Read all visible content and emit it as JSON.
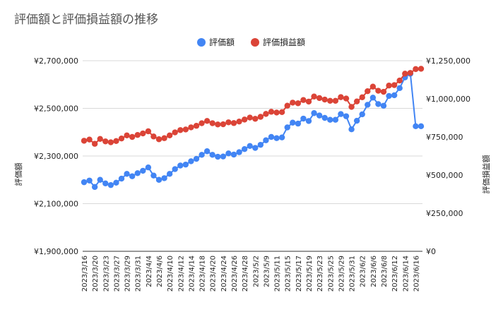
{
  "chart_data": {
    "type": "line",
    "title": "評価額と評価損益額の推移",
    "ylabel_left": "評価額",
    "ylabel_right": "評価損益額",
    "ylim_left": [
      1900000,
      2700000
    ],
    "ylim_right": [
      0,
      1250000
    ],
    "left_ticks": [
      "¥1,900,000",
      "¥2,100,000",
      "¥2,300,000",
      "¥2,500,000",
      "¥2,700,000"
    ],
    "left_tick_values": [
      1900000,
      2100000,
      2300000,
      2500000,
      2700000
    ],
    "right_ticks": [
      "¥0",
      "¥250,000",
      "¥500,000",
      "¥750,000",
      "¥1,000,000",
      "¥1,250,000"
    ],
    "right_tick_values": [
      0,
      250000,
      500000,
      750000,
      1000000,
      1250000
    ],
    "grid": true,
    "legend_position": "top-center",
    "x": [
      "2023/3/16",
      "2023/3/17",
      "2023/3/20",
      "2023/3/22",
      "2023/3/23",
      "2023/3/24",
      "2023/3/27",
      "2023/3/28",
      "2023/3/29",
      "2023/3/30",
      "2023/3/31",
      "2023/4/3",
      "2023/4/4",
      "2023/4/5",
      "2023/4/6",
      "2023/4/7",
      "2023/4/10",
      "2023/4/11",
      "2023/4/12",
      "2023/4/13",
      "2023/4/14",
      "2023/4/17",
      "2023/4/18",
      "2023/4/19",
      "2023/4/20",
      "2023/4/21",
      "2023/4/24",
      "2023/4/25",
      "2023/4/26",
      "2023/4/27",
      "2023/4/28",
      "2023/5/1",
      "2023/5/2",
      "2023/5/8",
      "2023/5/9",
      "2023/5/10",
      "2023/5/11",
      "2023/5/12",
      "2023/5/15",
      "2023/5/16",
      "2023/5/17",
      "2023/5/18",
      "2023/5/19",
      "2023/5/22",
      "2023/5/23",
      "2023/5/24",
      "2023/5/25",
      "2023/5/26",
      "2023/5/29",
      "2023/5/30",
      "2023/5/31",
      "2023/6/1",
      "2023/6/2",
      "2023/6/5",
      "2023/6/6",
      "2023/6/7",
      "2023/6/8",
      "2023/6/9",
      "2023/6/12",
      "2023/6/13",
      "2023/6/14",
      "2023/6/15",
      "2023/6/16",
      "2023/6/19"
    ],
    "x_tick_labels": [
      "2023/3/16",
      "2023/3/20",
      "2023/3/23",
      "2023/3/27",
      "2023/3/29",
      "2023/3/31",
      "2023/4/4",
      "2023/4/6",
      "2023/4/10",
      "2023/4/12",
      "2023/4/14",
      "2023/4/18",
      "2023/4/20",
      "2023/4/24",
      "2023/4/26",
      "2023/4/28",
      "2023/5/2",
      "2023/5/9",
      "2023/5/11",
      "2023/5/15",
      "2023/5/17",
      "2023/5/19",
      "2023/5/23",
      "2023/5/25",
      "2023/5/29",
      "2023/5/31",
      "2023/6/2",
      "2023/6/6",
      "2023/6/8",
      "2023/6/12",
      "2023/6/14",
      "2023/6/16"
    ],
    "series": [
      {
        "name": "評価額",
        "color": "#4285f4",
        "axis": "left",
        "values": [
          2190000,
          2197000,
          2170000,
          2200000,
          2185000,
          2178000,
          2188000,
          2205000,
          2225000,
          2215000,
          2228000,
          2238000,
          2252000,
          2218000,
          2200000,
          2207000,
          2225000,
          2245000,
          2260000,
          2264000,
          2278000,
          2288000,
          2305000,
          2320000,
          2305000,
          2297000,
          2298000,
          2311000,
          2306000,
          2316000,
          2329000,
          2342000,
          2334000,
          2347000,
          2366000,
          2380000,
          2375000,
          2378000,
          2420000,
          2440000,
          2436000,
          2457000,
          2447000,
          2480000,
          2470000,
          2460000,
          2452000,
          2452000,
          2476000,
          2467000,
          2412000,
          2448000,
          2475000,
          2515000,
          2545000,
          2518000,
          2511000,
          2552000,
          2555000,
          2585000,
          2630000,
          2645000,
          2425000,
          2425000
        ]
      },
      {
        "name": "評価損益額",
        "color": "#db4437",
        "axis": "right",
        "values": [
          725000,
          733000,
          705000,
          737000,
          721000,
          715000,
          723000,
          740000,
          760000,
          750000,
          763000,
          773000,
          787000,
          753000,
          735000,
          742000,
          760000,
          780000,
          795000,
          799000,
          813000,
          823000,
          840000,
          855000,
          840000,
          832000,
          833000,
          846000,
          841000,
          851000,
          864000,
          877000,
          869000,
          882000,
          901000,
          915000,
          910000,
          913000,
          955000,
          975000,
          971000,
          992000,
          982000,
          1015000,
          1005000,
          995000,
          987000,
          987000,
          1011000,
          1002000,
          947000,
          983000,
          1010000,
          1050000,
          1080000,
          1053000,
          1046000,
          1087000,
          1090000,
          1120000,
          1165000,
          1170000,
          1195000,
          1197000
        ]
      }
    ]
  }
}
